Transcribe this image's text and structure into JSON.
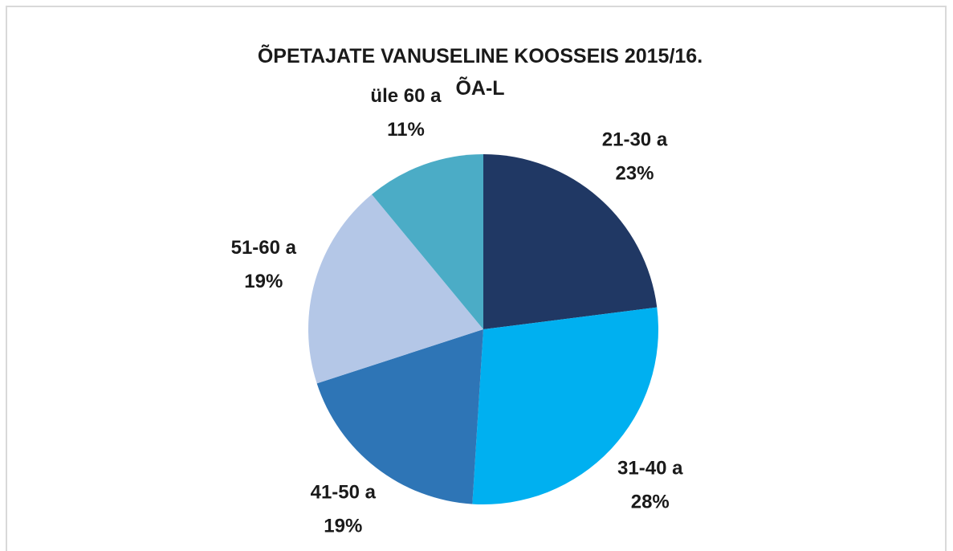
{
  "chart_data": {
    "type": "pie",
    "title": "ÕPETAJATE VANUSELINE KOOSSEIS 2015/16. ÕA-L",
    "categories": [
      "21-30 a",
      "31-40 a",
      "41-50 a",
      "51-60 a",
      "üle 60 a"
    ],
    "values": [
      23,
      28,
      19,
      19,
      11
    ],
    "value_labels": [
      "23%",
      "28%",
      "19%",
      "19%",
      "11%"
    ],
    "colors": [
      "#203864",
      "#00b0f0",
      "#2e75b6",
      "#b4c7e7",
      "#4bacc6"
    ]
  }
}
